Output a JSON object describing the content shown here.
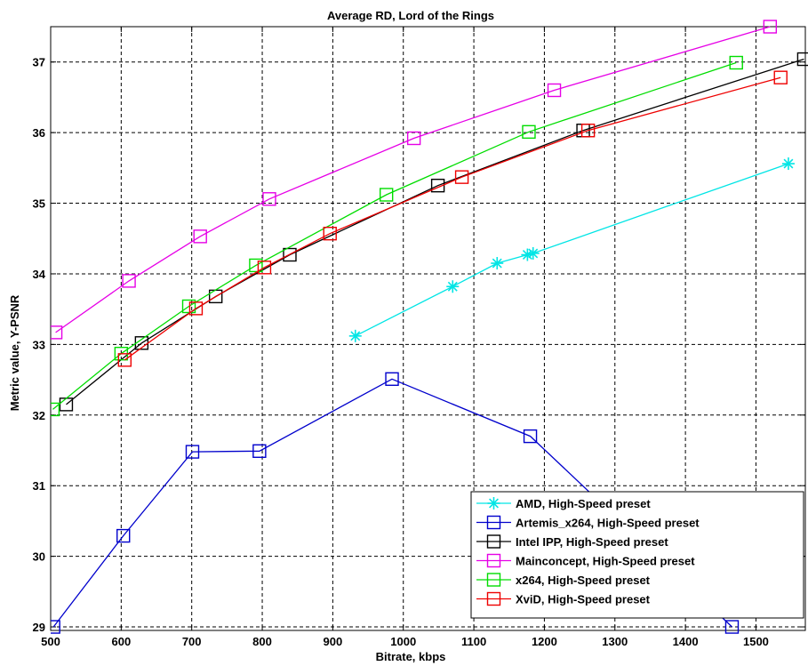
{
  "chart_data": {
    "type": "line",
    "title": "Average RD, Lord of the Rings",
    "xlabel": "Bitrate, kbps",
    "ylabel": "Metric value, Y-PSNR",
    "xlim": [
      500,
      1570
    ],
    "ylim": [
      28.95,
      37.5
    ],
    "x_ticks": [
      500,
      600,
      700,
      800,
      900,
      1000,
      1100,
      1200,
      1300,
      1400,
      1500
    ],
    "y_ticks": [
      29,
      30,
      31,
      32,
      33,
      34,
      35,
      36,
      37
    ],
    "grid": true,
    "legend_position": "bottom-right",
    "series": [
      {
        "name": "AMD, High-Speed preset",
        "color": "#00e5e5",
        "marker": "star",
        "x": [
          932,
          1070,
          1133,
          1176,
          1184,
          1546
        ],
        "y": [
          33.12,
          33.82,
          34.15,
          34.27,
          34.29,
          35.56
        ]
      },
      {
        "name": "Artemis_x264, High-Speed preset",
        "color": "#0000cc",
        "marker": "square",
        "x": [
          504,
          603,
          701,
          796,
          984,
          1180,
          1466
        ],
        "y": [
          29.0,
          30.29,
          31.48,
          31.49,
          32.51,
          31.7,
          29.0
        ]
      },
      {
        "name": "Intel IPP, High-Speed preset",
        "color": "#000000",
        "marker": "square",
        "x": [
          522,
          629,
          734,
          839,
          1049,
          1255,
          1568
        ],
        "y": [
          32.15,
          33.02,
          33.68,
          34.27,
          35.25,
          36.03,
          37.04
        ]
      },
      {
        "name": "Mainconcept, High-Speed preset",
        "color": "#e600e6",
        "marker": "square",
        "x": [
          507,
          611,
          712,
          810,
          1015,
          1214,
          1520
        ],
        "y": [
          33.17,
          33.9,
          34.53,
          35.06,
          35.92,
          36.6,
          37.5
        ]
      },
      {
        "name": "x264, High-Speed preset",
        "color": "#00dd00",
        "marker": "square",
        "x": [
          503,
          600,
          696,
          791,
          976,
          1178,
          1472
        ],
        "y": [
          32.08,
          32.87,
          33.54,
          34.12,
          35.12,
          36.01,
          36.99
        ]
      },
      {
        "name": "XviD, High-Speed preset",
        "color": "#ee0000",
        "marker": "square",
        "x": [
          605,
          706,
          803,
          896,
          1083,
          1262,
          1535
        ],
        "y": [
          32.78,
          33.51,
          34.09,
          34.57,
          35.37,
          36.03,
          36.78
        ]
      }
    ]
  }
}
